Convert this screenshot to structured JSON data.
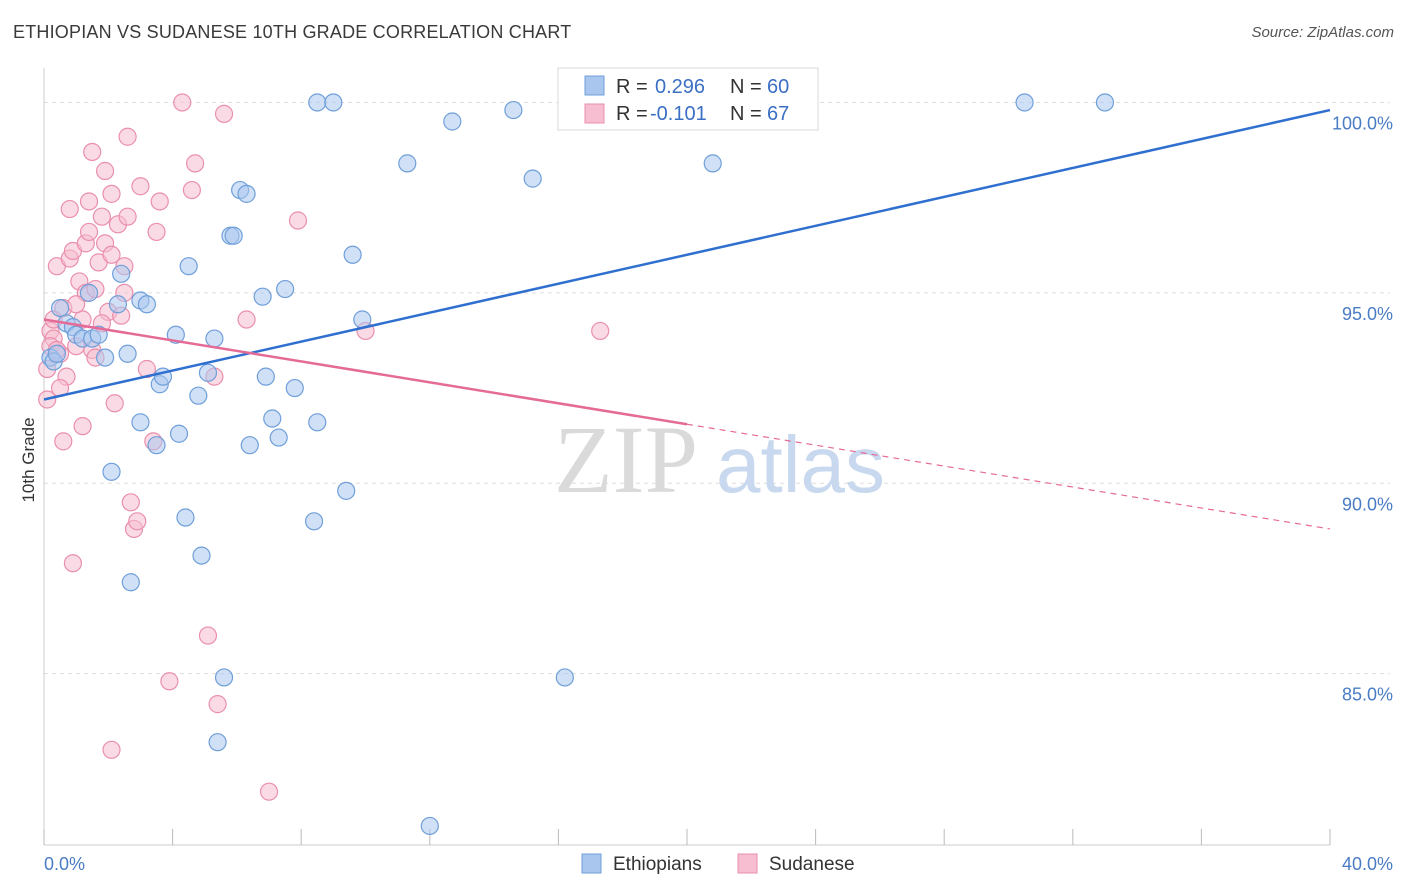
{
  "title": "ETHIOPIAN VS SUDANESE 10TH GRADE CORRELATION CHART",
  "source": "Source: ZipAtlas.com",
  "watermark": {
    "zip": "ZIP",
    "atlas": "atlas"
  },
  "colors": {
    "blue_fill": "#a9c6ee",
    "blue_stroke": "#6f9fd9",
    "blue_line": "#2f6fcf",
    "pink_fill": "#f6bed0",
    "pink_stroke": "#ea8fae",
    "pink_line": "#e56b97",
    "grid": "#dddddd",
    "axis_text": "#4a7cc4"
  },
  "legend": {
    "r_label": "R =",
    "n_label": "N =",
    "blue": {
      "r": "0.296",
      "n": "60"
    },
    "pink": {
      "r": "-0.101",
      "n": "67"
    }
  },
  "bottom_legend": {
    "blue": "Ethiopians",
    "pink": "Sudanese"
  },
  "chart_data": {
    "type": "scatter",
    "title": "ETHIOPIAN VS SUDANESE 10TH GRADE CORRELATION CHART",
    "xlabel": "",
    "ylabel": "10th Grade",
    "xlim": [
      0,
      40
    ],
    "ylim": [
      80.5,
      100.8
    ],
    "x_tick_labels": [
      "0.0%",
      "40.0%"
    ],
    "y_ticks": [
      85,
      90,
      95,
      100
    ],
    "y_tick_labels": [
      "85.0%",
      "90.0%",
      "95.0%",
      "100.0%"
    ],
    "series": [
      {
        "name": "Ethiopians",
        "r": 0.296,
        "n": 60,
        "trend": {
          "x0": 0,
          "y0": 92.2,
          "x1": 40,
          "y1": 99.8,
          "dashed_from": null
        },
        "points": [
          [
            0.2,
            93.3
          ],
          [
            0.3,
            93.2
          ],
          [
            0.4,
            93.4
          ],
          [
            0.5,
            94.6
          ],
          [
            0.7,
            94.2
          ],
          [
            0.9,
            94.1
          ],
          [
            1.0,
            93.9
          ],
          [
            1.2,
            93.8
          ],
          [
            1.4,
            95.0
          ],
          [
            1.5,
            93.8
          ],
          [
            1.7,
            93.9
          ],
          [
            1.9,
            93.3
          ],
          [
            2.1,
            90.3
          ],
          [
            2.3,
            94.7
          ],
          [
            2.4,
            95.5
          ],
          [
            2.6,
            93.4
          ],
          [
            2.7,
            87.4
          ],
          [
            3.0,
            94.8
          ],
          [
            3.0,
            91.6
          ],
          [
            3.2,
            94.7
          ],
          [
            3.5,
            91.0
          ],
          [
            3.6,
            92.6
          ],
          [
            3.7,
            92.8
          ],
          [
            4.1,
            93.9
          ],
          [
            4.2,
            91.3
          ],
          [
            4.4,
            89.1
          ],
          [
            4.5,
            95.7
          ],
          [
            4.8,
            92.3
          ],
          [
            4.9,
            88.1
          ],
          [
            5.1,
            92.9
          ],
          [
            5.3,
            93.8
          ],
          [
            5.4,
            83.2
          ],
          [
            5.6,
            84.9
          ],
          [
            5.8,
            96.5
          ],
          [
            5.9,
            96.5
          ],
          [
            6.1,
            97.7
          ],
          [
            6.3,
            97.6
          ],
          [
            6.4,
            91.0
          ],
          [
            6.8,
            94.9
          ],
          [
            6.9,
            92.8
          ],
          [
            7.1,
            91.7
          ],
          [
            7.3,
            91.2
          ],
          [
            7.5,
            95.1
          ],
          [
            7.8,
            92.5
          ],
          [
            8.4,
            89.0
          ],
          [
            8.5,
            91.6
          ],
          [
            8.5,
            100.0
          ],
          [
            9.0,
            100.0
          ],
          [
            9.4,
            89.8
          ],
          [
            9.6,
            96.0
          ],
          [
            9.9,
            94.3
          ],
          [
            11.3,
            98.4
          ],
          [
            12.7,
            99.5
          ],
          [
            14.6,
            99.8
          ],
          [
            15.2,
            98.0
          ],
          [
            16.2,
            84.9
          ],
          [
            20.8,
            98.4
          ],
          [
            30.5,
            100.0
          ],
          [
            33.0,
            100.0
          ],
          [
            12.0,
            81.0
          ]
        ]
      },
      {
        "name": "Sudanese",
        "r": -0.101,
        "n": 67,
        "trend": {
          "x0": 0,
          "y0": 94.3,
          "x1": 40,
          "y1": 88.8,
          "dashed_from": 20
        },
        "points": [
          [
            0.1,
            92.2
          ],
          [
            0.2,
            94.0
          ],
          [
            0.3,
            93.8
          ],
          [
            0.3,
            94.3
          ],
          [
            0.4,
            95.7
          ],
          [
            0.5,
            93.4
          ],
          [
            0.6,
            94.6
          ],
          [
            0.6,
            91.1
          ],
          [
            0.7,
            92.8
          ],
          [
            0.8,
            97.2
          ],
          [
            0.8,
            95.9
          ],
          [
            0.9,
            96.1
          ],
          [
            0.9,
            87.9
          ],
          [
            1.0,
            93.6
          ],
          [
            1.1,
            95.3
          ],
          [
            1.2,
            94.3
          ],
          [
            1.2,
            91.5
          ],
          [
            1.3,
            95.0
          ],
          [
            1.3,
            96.3
          ],
          [
            1.4,
            96.6
          ],
          [
            1.4,
            97.4
          ],
          [
            1.5,
            93.5
          ],
          [
            1.5,
            98.7
          ],
          [
            1.6,
            93.3
          ],
          [
            1.7,
            95.8
          ],
          [
            1.8,
            97.0
          ],
          [
            1.9,
            96.3
          ],
          [
            1.9,
            98.2
          ],
          [
            2.0,
            94.5
          ],
          [
            2.1,
            96.0
          ],
          [
            2.1,
            97.6
          ],
          [
            2.2,
            92.1
          ],
          [
            2.3,
            96.8
          ],
          [
            2.4,
            94.4
          ],
          [
            2.5,
            95.7
          ],
          [
            2.5,
            95.0
          ],
          [
            2.6,
            97.0
          ],
          [
            2.6,
            99.1
          ],
          [
            2.7,
            89.5
          ],
          [
            2.8,
            88.8
          ],
          [
            2.9,
            89.0
          ],
          [
            3.0,
            97.8
          ],
          [
            3.2,
            93.0
          ],
          [
            3.4,
            91.1
          ],
          [
            3.5,
            96.6
          ],
          [
            3.6,
            97.4
          ],
          [
            3.9,
            84.8
          ],
          [
            4.3,
            100.0
          ],
          [
            4.6,
            97.7
          ],
          [
            4.7,
            98.4
          ],
          [
            5.1,
            86.0
          ],
          [
            5.3,
            92.8
          ],
          [
            5.4,
            84.2
          ],
          [
            5.6,
            99.7
          ],
          [
            6.3,
            94.3
          ],
          [
            7.0,
            81.9
          ],
          [
            7.9,
            96.9
          ],
          [
            10.0,
            94.0
          ],
          [
            17.3,
            94.0
          ],
          [
            2.1,
            83.0
          ],
          [
            0.1,
            93.0
          ],
          [
            0.2,
            93.6
          ],
          [
            0.4,
            93.5
          ],
          [
            0.5,
            92.5
          ],
          [
            1.0,
            94.7
          ],
          [
            1.6,
            95.1
          ],
          [
            1.8,
            94.2
          ]
        ]
      }
    ]
  }
}
